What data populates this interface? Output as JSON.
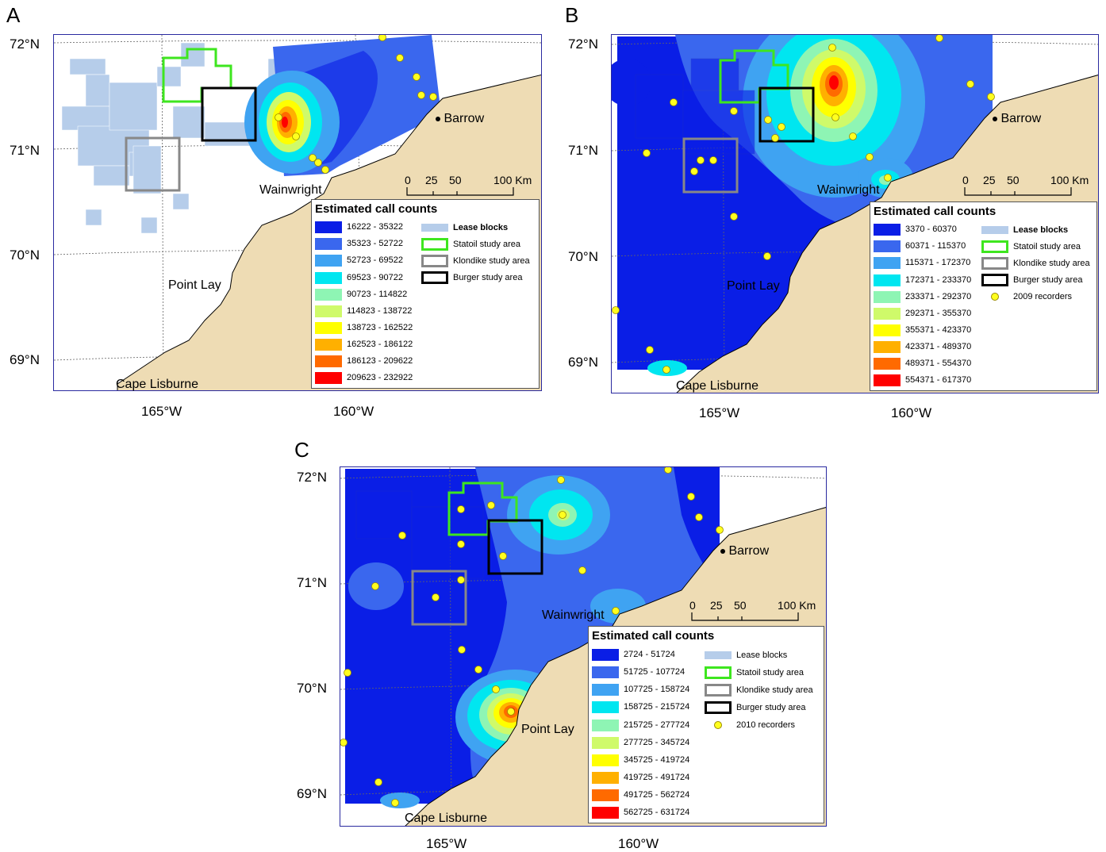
{
  "panels": [
    {
      "letter": "A",
      "lat_labels": [
        "72°N",
        "71°N",
        "70°N",
        "69°N"
      ],
      "lon_labels": [
        "165°W",
        "160°W"
      ],
      "places": [
        "Barrow",
        "Wainwright",
        "Point Lay",
        "Cape Lisburne"
      ],
      "scale_labels": [
        "0",
        "25",
        "50",
        "100 Km"
      ],
      "legend_title": "Estimated call counts",
      "ranges": [
        "16222 - 35322",
        "35323 - 52722",
        "52723 - 69522",
        "69523 - 90722",
        "90723 - 114822",
        "114823 - 138722",
        "138723 - 162522",
        "162523 - 186122",
        "186123 - 209622",
        "209623 - 232922"
      ],
      "symbols": [
        "Lease blocks",
        "Statoil study area",
        "Klondike study area",
        "Burger study area"
      ]
    },
    {
      "letter": "B",
      "lat_labels": [
        "72°N",
        "71°N",
        "70°N",
        "69°N"
      ],
      "lon_labels": [
        "165°W",
        "160°W"
      ],
      "places": [
        "Barrow",
        "Wainwright",
        "Point Lay",
        "Cape Lisburne"
      ],
      "scale_labels": [
        "0",
        "25",
        "50",
        "100 Km"
      ],
      "legend_title": "Estimated call counts",
      "ranges": [
        "3370 - 60370",
        "60371 - 115370",
        "115371 - 172370",
        "172371 - 233370",
        "233371 - 292370",
        "292371 - 355370",
        "355371 - 423370",
        "423371 - 489370",
        "489371 - 554370",
        "554371 - 617370"
      ],
      "symbols": [
        "Lease blocks",
        "Statoil study area",
        "Klondike study area",
        "Burger study area",
        "2009 recorders"
      ]
    },
    {
      "letter": "C",
      "lat_labels": [
        "72°N",
        "71°N",
        "70°N",
        "69°N"
      ],
      "lon_labels": [
        "165°W",
        "160°W"
      ],
      "places": [
        "Barrow",
        "Wainwright",
        "Point Lay",
        "Cape Lisburne"
      ],
      "scale_labels": [
        "0",
        "25",
        "50",
        "100 Km"
      ],
      "legend_title": "Estimated call counts",
      "ranges": [
        "2724 - 51724",
        "51725 - 107724",
        "107725 - 158724",
        "158725 - 215724",
        "215725 - 277724",
        "277725 - 345724",
        "345725 - 419724",
        "419725 - 491724",
        "491725 - 562724",
        "562725 - 631724"
      ],
      "symbols": [
        "Lease blocks",
        "Statoil study area",
        "Klondike study area",
        "Burger study area",
        "2010 recorders"
      ]
    }
  ],
  "colors": {
    "class_ramp": [
      "#0a1ee6",
      "#3a67ee",
      "#3fa3f2",
      "#00e6f0",
      "#8ef5b4",
      "#cffa6a",
      "#ffff00",
      "#ffb000",
      "#ff6a00",
      "#ff0000"
    ],
    "land": "#eedcb4",
    "lease": "#b6cdea",
    "statoil": "#3ee61f",
    "klondike": "#888888",
    "burger": "#000000",
    "recorder": "#ffff1e",
    "frame": "#2a2aa0"
  }
}
